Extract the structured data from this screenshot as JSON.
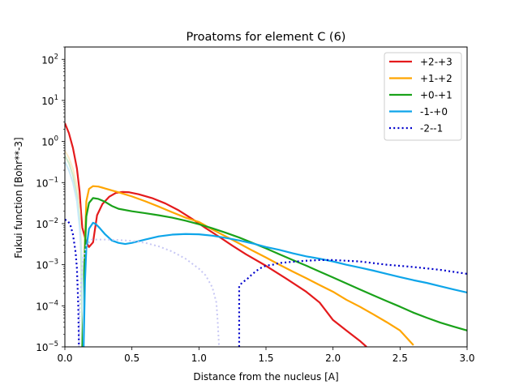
{
  "chart_data": {
    "type": "line",
    "title": "Proatoms for element C (6)",
    "xlabel": "Distance from the nucleus [A]",
    "ylabel": "Fukui function [Bohr**-3]",
    "xlim": [
      0.0,
      3.0
    ],
    "ylim": [
      1e-05,
      200
    ],
    "yscale": "log",
    "grid": false,
    "legend_position": "top-right",
    "x_ticks": [
      0.0,
      0.5,
      1.0,
      1.5,
      2.0,
      2.5,
      3.0
    ],
    "x_tick_labels": [
      "0.0",
      "0.5",
      "1.0",
      "1.5",
      "2.0",
      "2.5",
      "3.0"
    ],
    "y_ticks": [
      1e-05,
      0.0001,
      0.001,
      0.01,
      0.1,
      1.0,
      10.0,
      100.0
    ],
    "y_tick_labels": [
      {
        "base": "10",
        "exp": "−5"
      },
      {
        "base": "10",
        "exp": "−4"
      },
      {
        "base": "10",
        "exp": "−3"
      },
      {
        "base": "10",
        "exp": "−2"
      },
      {
        "base": "10",
        "exp": "−1"
      },
      {
        "base": "10",
        "exp": "0"
      },
      {
        "base": "10",
        "exp": "1"
      },
      {
        "base": "10",
        "exp": "2"
      }
    ],
    "series": [
      {
        "name": "+2-+3",
        "color": "#e41a1c",
        "style": "solid",
        "solid": [
          [
            0.0,
            2.8
          ],
          [
            0.03,
            1.6
          ],
          [
            0.06,
            0.7
          ],
          [
            0.09,
            0.22
          ],
          [
            0.11,
            0.06
          ],
          [
            0.12,
            0.02
          ],
          [
            0.13,
            0.008
          ],
          [
            0.16,
            0.0035
          ],
          [
            0.18,
            0.0027
          ],
          [
            0.21,
            0.0035
          ],
          [
            0.24,
            0.016
          ],
          [
            0.28,
            0.03
          ],
          [
            0.33,
            0.045
          ],
          [
            0.38,
            0.056
          ],
          [
            0.43,
            0.059
          ],
          [
            0.48,
            0.058
          ],
          [
            0.55,
            0.052
          ],
          [
            0.65,
            0.042
          ],
          [
            0.75,
            0.031
          ],
          [
            0.85,
            0.021
          ],
          [
            0.95,
            0.013
          ],
          [
            1.05,
            0.0078
          ],
          [
            1.15,
            0.0048
          ],
          [
            1.25,
            0.0029
          ],
          [
            1.35,
            0.0018
          ],
          [
            1.5,
            0.00094
          ],
          [
            1.65,
            0.00046
          ],
          [
            1.8,
            0.00022
          ],
          [
            1.9,
            0.00012
          ],
          [
            2.0,
            4.5e-05
          ],
          [
            2.1,
            2.5e-05
          ],
          [
            2.2,
            1.4e-05
          ],
          [
            2.25,
            1e-05
          ]
        ],
        "faded": []
      },
      {
        "name": "+1-+2",
        "color": "#ffa500",
        "style": "solid",
        "solid": [
          [
            0.13,
            1e-05
          ],
          [
            0.14,
            0.0002
          ],
          [
            0.15,
            0.004
          ],
          [
            0.16,
            0.035
          ],
          [
            0.18,
            0.07
          ],
          [
            0.21,
            0.082
          ],
          [
            0.25,
            0.08
          ],
          [
            0.3,
            0.072
          ],
          [
            0.4,
            0.058
          ],
          [
            0.5,
            0.046
          ],
          [
            0.6,
            0.035
          ],
          [
            0.7,
            0.026
          ],
          [
            0.8,
            0.019
          ],
          [
            0.9,
            0.014
          ],
          [
            1.0,
            0.011
          ],
          [
            1.1,
            0.0072
          ],
          [
            1.2,
            0.0049
          ],
          [
            1.3,
            0.0033
          ],
          [
            1.4,
            0.0022
          ],
          [
            1.5,
            0.0015
          ],
          [
            1.6,
            0.001
          ],
          [
            1.7,
            0.00068
          ],
          [
            1.8,
            0.00047
          ],
          [
            1.9,
            0.00032
          ],
          [
            2.0,
            0.00022
          ],
          [
            2.1,
            0.00014
          ],
          [
            2.2,
            9.5e-05
          ],
          [
            2.3,
            6.2e-05
          ],
          [
            2.4,
            4e-05
          ],
          [
            2.5,
            2.5e-05
          ],
          [
            2.6,
            1.1e-05
          ]
        ],
        "faded": [
          [
            0.0,
            0.6
          ],
          [
            0.03,
            0.4
          ],
          [
            0.06,
            0.22
          ],
          [
            0.09,
            0.08
          ],
          [
            0.11,
            0.02
          ],
          [
            0.12,
            0.004
          ],
          [
            0.13,
            1e-05
          ]
        ]
      },
      {
        "name": "+0-+1",
        "color": "#1aa21a",
        "style": "solid",
        "solid": [
          [
            0.13,
            1e-05
          ],
          [
            0.14,
            0.00025
          ],
          [
            0.15,
            0.0025
          ],
          [
            0.16,
            0.015
          ],
          [
            0.18,
            0.032
          ],
          [
            0.21,
            0.042
          ],
          [
            0.25,
            0.04
          ],
          [
            0.3,
            0.034
          ],
          [
            0.35,
            0.027
          ],
          [
            0.4,
            0.023
          ],
          [
            0.5,
            0.02
          ],
          [
            0.6,
            0.018
          ],
          [
            0.7,
            0.016
          ],
          [
            0.8,
            0.014
          ],
          [
            0.9,
            0.0118
          ],
          [
            1.0,
            0.0097
          ],
          [
            1.1,
            0.0077
          ],
          [
            1.2,
            0.006
          ],
          [
            1.3,
            0.0046
          ],
          [
            1.4,
            0.0034
          ],
          [
            1.5,
            0.0025
          ],
          [
            1.6,
            0.0018
          ],
          [
            1.7,
            0.0013
          ],
          [
            1.8,
            0.00095
          ],
          [
            1.9,
            0.00068
          ],
          [
            2.0,
            0.00049
          ],
          [
            2.1,
            0.00035
          ],
          [
            2.2,
            0.00025
          ],
          [
            2.3,
            0.00018
          ],
          [
            2.4,
            0.00013
          ],
          [
            2.5,
            9.5e-05
          ],
          [
            2.6,
            6.8e-05
          ],
          [
            2.7,
            5.1e-05
          ],
          [
            2.8,
            3.9e-05
          ],
          [
            2.9,
            3.1e-05
          ],
          [
            3.0,
            2.5e-05
          ]
        ],
        "faded": [
          [
            0.0,
            0.45
          ],
          [
            0.03,
            0.3
          ],
          [
            0.06,
            0.15
          ],
          [
            0.09,
            0.05
          ],
          [
            0.11,
            0.012
          ],
          [
            0.12,
            0.002
          ],
          [
            0.13,
            1e-05
          ]
        ]
      },
      {
        "name": "-1-+0",
        "color": "#0ea5e9",
        "style": "solid",
        "solid": [
          [
            0.14,
            1e-05
          ],
          [
            0.15,
            0.0004
          ],
          [
            0.16,
            0.0025
          ],
          [
            0.18,
            0.0075
          ],
          [
            0.21,
            0.0105
          ],
          [
            0.23,
            0.0098
          ],
          [
            0.26,
            0.0078
          ],
          [
            0.3,
            0.0055
          ],
          [
            0.35,
            0.0039
          ],
          [
            0.4,
            0.0034
          ],
          [
            0.45,
            0.0032
          ],
          [
            0.5,
            0.0034
          ],
          [
            0.6,
            0.0041
          ],
          [
            0.7,
            0.0049
          ],
          [
            0.8,
            0.0054
          ],
          [
            0.9,
            0.0056
          ],
          [
            1.0,
            0.0055
          ],
          [
            1.1,
            0.0051
          ],
          [
            1.2,
            0.0045
          ],
          [
            1.3,
            0.0039
          ],
          [
            1.4,
            0.0033
          ],
          [
            1.5,
            0.0027
          ],
          [
            1.6,
            0.0023
          ],
          [
            1.7,
            0.0019
          ],
          [
            1.8,
            0.0016
          ],
          [
            1.9,
            0.0014
          ],
          [
            2.0,
            0.0012
          ],
          [
            2.1,
            0.001
          ],
          [
            2.2,
            0.00085
          ],
          [
            2.3,
            0.00072
          ],
          [
            2.4,
            0.0006
          ],
          [
            2.5,
            0.0005
          ],
          [
            2.6,
            0.00042
          ],
          [
            2.7,
            0.00036
          ],
          [
            2.8,
            0.0003
          ],
          [
            2.9,
            0.00025
          ],
          [
            3.0,
            0.00021
          ]
        ],
        "faded": [
          [
            0.0,
            0.32
          ],
          [
            0.03,
            0.2
          ],
          [
            0.06,
            0.1
          ],
          [
            0.09,
            0.035
          ],
          [
            0.11,
            0.008
          ],
          [
            0.13,
            0.001
          ],
          [
            0.14,
            1e-05
          ]
        ]
      },
      {
        "name": "-2--1",
        "color": "#0000cc",
        "style": "dotted",
        "solid": [
          [
            0.0,
            0.0125
          ],
          [
            0.02,
            0.0118
          ],
          [
            0.04,
            0.0095
          ],
          [
            0.06,
            0.0055
          ],
          [
            0.08,
            0.002
          ],
          [
            0.09,
            0.0008
          ],
          [
            0.1,
            0.0001
          ],
          [
            0.105,
            1e-05
          ]
        ],
        "solid2": [
          [
            1.3,
            1e-05
          ],
          [
            1.3,
            0.0003
          ],
          [
            1.32,
            0.00036
          ],
          [
            1.36,
            0.00045
          ],
          [
            1.4,
            0.0006
          ],
          [
            1.45,
            0.0008
          ],
          [
            1.5,
            0.00095
          ],
          [
            1.55,
            0.001
          ],
          [
            1.6,
            0.0011
          ],
          [
            1.7,
            0.00118
          ],
          [
            1.8,
            0.00125
          ],
          [
            1.9,
            0.0013
          ],
          [
            2.0,
            0.0013
          ],
          [
            2.2,
            0.0012
          ],
          [
            2.4,
            0.001
          ],
          [
            2.6,
            0.00088
          ],
          [
            2.8,
            0.00075
          ],
          [
            3.0,
            0.0006
          ]
        ],
        "faded": [
          [
            0.105,
            1e-05
          ],
          [
            0.11,
            0.0001
          ],
          [
            0.13,
            0.001
          ],
          [
            0.16,
            0.003
          ],
          [
            0.2,
            0.0041
          ],
          [
            0.3,
            0.0041
          ],
          [
            0.4,
            0.004
          ],
          [
            0.5,
            0.0038
          ],
          [
            0.6,
            0.0034
          ],
          [
            0.7,
            0.0028
          ],
          [
            0.8,
            0.0021
          ],
          [
            0.9,
            0.0014
          ],
          [
            1.0,
            0.0008
          ],
          [
            1.05,
            0.00055
          ],
          [
            1.1,
            0.00028
          ],
          [
            1.13,
            0.00012
          ],
          [
            1.14,
            4e-05
          ],
          [
            1.15,
            1e-05
          ]
        ]
      }
    ]
  }
}
